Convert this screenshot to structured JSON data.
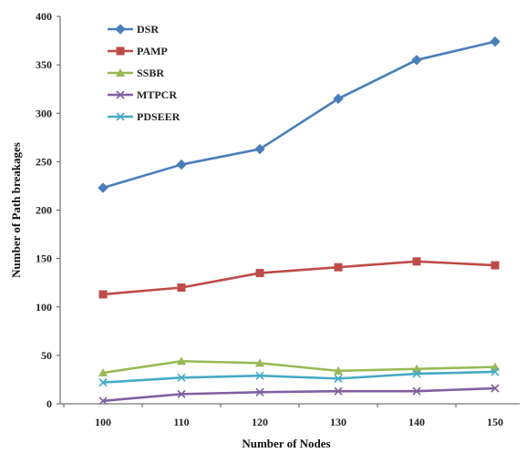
{
  "chart_data": {
    "type": "line",
    "title": "",
    "xlabel": "Number of Nodes",
    "ylabel": "Number of Path breakages",
    "categories": [
      "100",
      "110",
      "120",
      "130",
      "140",
      "150"
    ],
    "ylim": [
      0,
      400
    ],
    "yticks": [
      "0",
      "50",
      "100",
      "150",
      "200",
      "250",
      "300",
      "350",
      "400"
    ],
    "grid": false,
    "legend_position": "top-left",
    "series": [
      {
        "name": "DSR",
        "color": "#4A7EBB",
        "marker": "diamond",
        "values": [
          223,
          247,
          263,
          315,
          355,
          374
        ]
      },
      {
        "name": "PAMP",
        "color": "#BE4B48",
        "marker": "square",
        "values": [
          113,
          120,
          135,
          141,
          147,
          143
        ]
      },
      {
        "name": "SSBR",
        "color": "#98B954",
        "marker": "triangle",
        "values": [
          32,
          44,
          42,
          34,
          36,
          38
        ]
      },
      {
        "name": "MTPCR",
        "color": "#7D60A0",
        "marker": "x",
        "values": [
          3,
          10,
          12,
          13,
          13,
          16
        ]
      },
      {
        "name": "PDSEER",
        "color": "#46AAC5",
        "marker": "x",
        "values": [
          22,
          27,
          29,
          26,
          31,
          33
        ]
      }
    ]
  }
}
